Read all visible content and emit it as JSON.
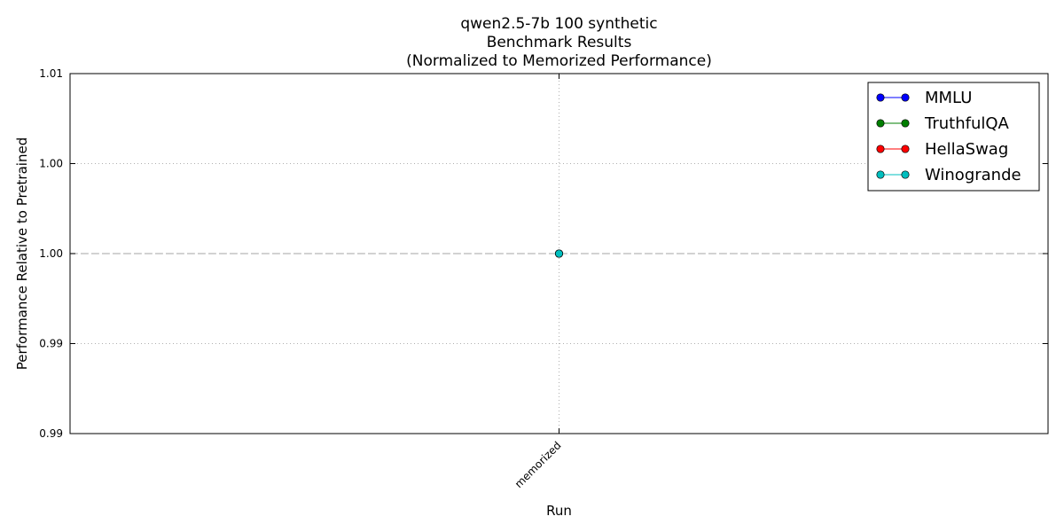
{
  "chart_data": {
    "type": "line",
    "title_lines": [
      "qwen2.5-7b 100 synthetic",
      "Benchmark Results",
      "(Normalized to Memorized Performance)"
    ],
    "xlabel": "Run",
    "ylabel": "Performance Relative to Pretrained",
    "categories": [
      "memorized"
    ],
    "ylim": [
      0.99,
      1.01
    ],
    "yticks": [
      0.99,
      0.995,
      1.0,
      1.005,
      1.01
    ],
    "ytick_labels": [
      "0.99",
      "0.99",
      "1.00",
      "1.00",
      "1.01"
    ],
    "reference_line": 1.0,
    "grid": true,
    "legend_position": "top-right",
    "series": [
      {
        "name": "MMLU",
        "values": [
          1.0
        ],
        "color": "#0000ff"
      },
      {
        "name": "TruthfulQA",
        "values": [
          1.0
        ],
        "color": "#007f00"
      },
      {
        "name": "HellaSwag",
        "values": [
          1.0
        ],
        "color": "#ff0000"
      },
      {
        "name": "Winogrande",
        "values": [
          1.0
        ],
        "color": "#00bfbf"
      }
    ]
  }
}
